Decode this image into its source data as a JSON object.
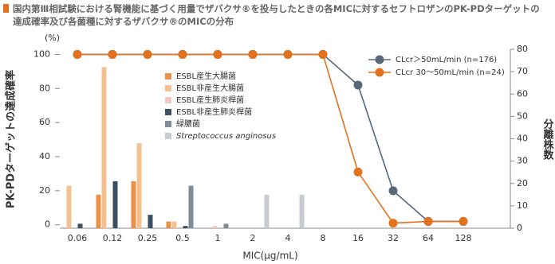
{
  "chart_data": {
    "type": "bar-line",
    "title": "国内第Ⅲ相試験における腎機能に基づく用量でザバクサ®を投与したときの各MICに対するセフトロザンのPK-PDターゲットの達成確率及び各菌種に対するザバクサ®のMICの分布",
    "y_unit": "(%)",
    "y_label": "PK-PDターゲットの達成確率",
    "y2_label": "分離株数",
    "x_label": "MIC(μg/mL)",
    "categories": [
      "0.06",
      "0.12",
      "0.25",
      "0.5",
      "1",
      "2",
      "4",
      "8",
      "16",
      "32",
      "64",
      "128"
    ],
    "ylim": [
      -2,
      103
    ],
    "yticks": [
      0,
      20,
      40,
      60,
      80,
      100
    ],
    "y2lim": [
      0,
      80
    ],
    "y2ticks": [
      0,
      10,
      20,
      30,
      40,
      50,
      60,
      70,
      80
    ],
    "bar_series": [
      {
        "name": "ESBL産生大腸菌",
        "color": "#e8914a",
        "axis": "y2",
        "values": [
          0,
          15,
          21,
          3,
          0,
          0,
          0,
          0,
          0,
          0,
          0,
          0
        ]
      },
      {
        "name": "ESBL非産生大腸菌",
        "color": "#f5c08f",
        "axis": "y2",
        "values": [
          19,
          72,
          38,
          3,
          0,
          0,
          0,
          0,
          0,
          0,
          0,
          0
        ]
      },
      {
        "name": "ESBL産生肺炎桿菌",
        "color": "#f2c9c2",
        "axis": "y2",
        "values": [
          0,
          0,
          0,
          0,
          1,
          0,
          0,
          0,
          0,
          0,
          0,
          0
        ]
      },
      {
        "name": "ESBL非産生肺炎桿菌",
        "color": "#3d5060",
        "axis": "y2",
        "values": [
          2,
          21,
          6,
          1,
          0,
          0,
          0,
          0,
          0,
          0,
          0,
          0
        ]
      },
      {
        "name": "緑膿菌",
        "color": "#7f8c99",
        "axis": "y2",
        "values": [
          0,
          0,
          0,
          19,
          2,
          0,
          0,
          0,
          0,
          0,
          0,
          0
        ]
      },
      {
        "name": "Streptococcus anginosus",
        "color": "#c8ccd2",
        "axis": "y2",
        "values": [
          0,
          0,
          0,
          0,
          0,
          15,
          15,
          0,
          0,
          0,
          0,
          0
        ]
      }
    ],
    "series": [
      {
        "name": "CLcr＞50mL/min (n=176)",
        "color": "#56687a",
        "values": [
          100,
          100,
          100,
          100,
          100,
          100,
          100,
          100,
          82,
          20,
          2,
          2
        ]
      },
      {
        "name": "CLcr 30～50mL/min (n=24)",
        "color": "#e3721f",
        "values": [
          100,
          100,
          100,
          100,
          100,
          100,
          100,
          100,
          31,
          1,
          2,
          2
        ]
      }
    ]
  }
}
